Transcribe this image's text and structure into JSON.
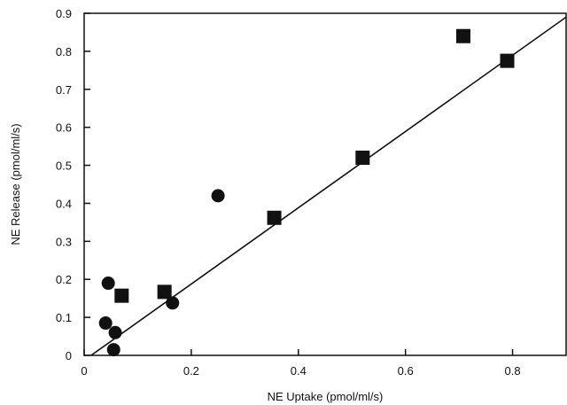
{
  "chart_data": {
    "type": "scatter",
    "xlabel": "NE Uptake (pmol/ml/s)",
    "ylabel": "NE Release (pmol/ml/s)",
    "xlim": [
      0,
      0.9
    ],
    "ylim": [
      0,
      0.9
    ],
    "x_ticks": [
      "0",
      "0.2",
      "0.4",
      "0.6",
      "0.8"
    ],
    "y_ticks": [
      "0",
      "0.1",
      "0.2",
      "0.3",
      "0.4",
      "0.5",
      "0.6",
      "0.7",
      "0.8",
      "0.9"
    ],
    "grid": false,
    "series": [
      {
        "marker": "circle",
        "color": "#111111",
        "points": [
          {
            "x": 0.045,
            "y": 0.19
          },
          {
            "x": 0.04,
            "y": 0.085
          },
          {
            "x": 0.058,
            "y": 0.06
          },
          {
            "x": 0.055,
            "y": 0.015
          },
          {
            "x": 0.165,
            "y": 0.138
          },
          {
            "x": 0.25,
            "y": 0.42
          }
        ]
      },
      {
        "marker": "square",
        "color": "#111111",
        "points": [
          {
            "x": 0.07,
            "y": 0.157
          },
          {
            "x": 0.15,
            "y": 0.167
          },
          {
            "x": 0.355,
            "y": 0.362
          },
          {
            "x": 0.52,
            "y": 0.52
          },
          {
            "x": 0.708,
            "y": 0.84
          },
          {
            "x": 0.79,
            "y": 0.775
          }
        ]
      }
    ],
    "fit_line": {
      "x1": 0.0,
      "y1": -0.013,
      "x2": 0.9,
      "y2": 0.89
    }
  }
}
